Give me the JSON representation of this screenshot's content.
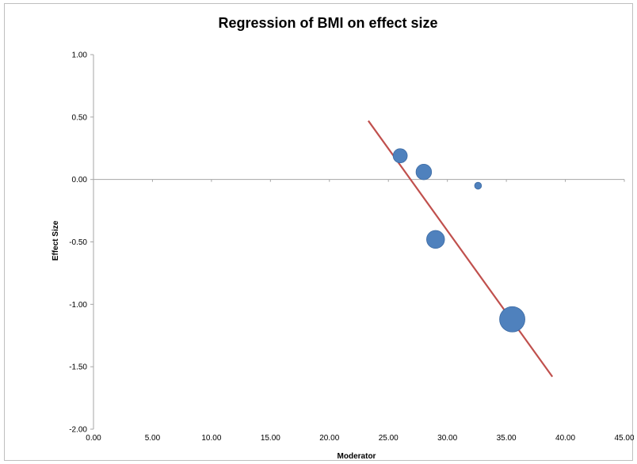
{
  "chart_data": {
    "type": "scatter",
    "title": "Regression of BMI on effect size",
    "xlabel": "Moderator",
    "ylabel": "Effect Size",
    "xlim": [
      0,
      45
    ],
    "ylim": [
      -2,
      1
    ],
    "x_ticks": [
      "0.00",
      "5.00",
      "10.00",
      "15.00",
      "20.00",
      "25.00",
      "30.00",
      "35.00",
      "40.00",
      "45.00"
    ],
    "y_ticks": [
      "1.00",
      "0.50",
      "0.00",
      "-0.50",
      "-1.00",
      "-1.50",
      "-2.00"
    ],
    "grid": false,
    "legend": "none",
    "colors": {
      "points": "#4f81bd",
      "line": "#c0504d",
      "axis": "#a6a6a6"
    },
    "series": [
      {
        "type": "bubble",
        "points": [
          {
            "x": 26.0,
            "y": 0.19,
            "size": 2.5
          },
          {
            "x": 28.0,
            "y": 0.06,
            "size": 3.0
          },
          {
            "x": 32.6,
            "y": -0.05,
            "size": 0.6
          },
          {
            "x": 29.0,
            "y": -0.48,
            "size": 4.0
          },
          {
            "x": 35.5,
            "y": -1.12,
            "size": 8.0
          }
        ]
      },
      {
        "type": "line",
        "points": [
          {
            "x": 23.3,
            "y": 0.47
          },
          {
            "x": 38.9,
            "y": -1.58
          }
        ]
      }
    ]
  }
}
